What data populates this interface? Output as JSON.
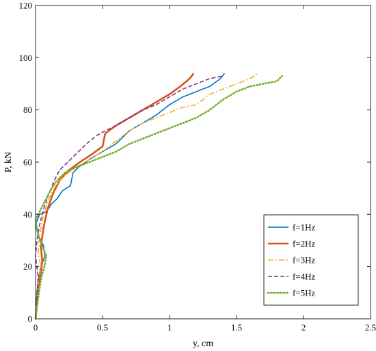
{
  "chart_data": {
    "type": "line",
    "title": "",
    "xlabel": "y, cm",
    "ylabel": "P, kN",
    "xlim": [
      0,
      2.5
    ],
    "ylim": [
      0,
      120
    ],
    "xticks": [
      0,
      0.5,
      1,
      1.5,
      2,
      2.5
    ],
    "xtick_labels": [
      "0",
      "0.5",
      "1",
      "1.5",
      "2",
      "2.5"
    ],
    "yticks": [
      0,
      20,
      40,
      60,
      80,
      100,
      120
    ],
    "ytick_labels": [
      "0",
      "20",
      "40",
      "60",
      "80",
      "100",
      "120"
    ],
    "grid": false,
    "legend_position": "bottom-right",
    "series": [
      {
        "name": "f=1Hz",
        "color": "#0072BD",
        "dash": "solid",
        "x": [
          0,
          0.005,
          0.01,
          0.02,
          0.04,
          0.07,
          0.06,
          0.02,
          0.0,
          0.03,
          0.08,
          0.12,
          0.16,
          0.2,
          0.26,
          0.28,
          0.32,
          0.4,
          0.5,
          0.6,
          0.7,
          0.8,
          0.9,
          1.0,
          1.1,
          1.2,
          1.3,
          1.38,
          1.41
        ],
        "y": [
          0,
          5,
          10,
          15,
          20,
          24,
          28,
          32,
          36,
          40,
          41,
          44,
          46,
          49,
          51,
          56,
          58,
          61,
          64,
          67,
          72,
          75,
          78,
          82,
          85,
          87,
          89,
          92,
          94
        ]
      },
      {
        "name": "f=2Hz",
        "color": "#D95319",
        "dash": "solid",
        "x": [
          0,
          0.01,
          0.02,
          0.04,
          0.05,
          0.04,
          0.06,
          0.09,
          0.13,
          0.18,
          0.25,
          0.33,
          0.42,
          0.5,
          0.52,
          0.6,
          0.7,
          0.8,
          0.9,
          1.0,
          1.08,
          1.15,
          1.18
        ],
        "y": [
          0,
          6,
          12,
          18,
          22,
          28,
          35,
          42,
          48,
          53,
          57,
          60,
          63,
          66,
          71,
          74,
          77,
          80,
          83,
          86,
          89,
          92,
          94
        ]
      },
      {
        "name": "f=3Hz",
        "color": "#EDB120",
        "dash": "dashdot",
        "x": [
          0,
          0.01,
          0.02,
          0.04,
          0.02,
          0.03,
          0.06,
          0.1,
          0.15,
          0.22,
          0.3,
          0.4,
          0.5,
          0.6,
          0.7,
          0.8,
          0.9,
          1.0,
          1.1,
          1.2,
          1.3,
          1.4,
          1.5,
          1.6,
          1.66
        ],
        "y": [
          0,
          7,
          14,
          20,
          25,
          32,
          40,
          46,
          51,
          55,
          58,
          61,
          64,
          68,
          72,
          75,
          77,
          79,
          81,
          82,
          86,
          88,
          90,
          92,
          94
        ]
      },
      {
        "name": "f=4Hz",
        "color": "#7E2F8E",
        "dash": "dashed",
        "x": [
          0,
          0.01,
          0.02,
          0.0,
          0.01,
          0.03,
          0.06,
          0.1,
          0.14,
          0.18,
          0.24,
          0.3,
          0.38,
          0.45,
          0.52,
          0.6,
          0.7,
          0.8,
          0.9,
          1.0,
          1.1,
          1.2,
          1.3,
          1.4
        ],
        "y": [
          0,
          8,
          16,
          24,
          30,
          36,
          42,
          48,
          53,
          57,
          60,
          63,
          67,
          70,
          72,
          74,
          77,
          80,
          82,
          85,
          88,
          90,
          92,
          93
        ]
      },
      {
        "name": "f=5Hz",
        "color": "#77AC30",
        "dash": "dotted",
        "x": [
          0,
          0.02,
          0.04,
          0.07,
          0.08,
          0.05,
          0.02,
          0.0,
          0.04,
          0.08,
          0.12,
          0.16,
          0.22,
          0.3,
          0.4,
          0.5,
          0.6,
          0.7,
          0.8,
          0.9,
          1.0,
          1.1,
          1.2,
          1.3,
          1.4,
          1.5,
          1.6,
          1.7,
          1.8,
          1.84
        ],
        "y": [
          0,
          8,
          15,
          21,
          24,
          28,
          32,
          38,
          42,
          46,
          50,
          53,
          56,
          58,
          60,
          62,
          64,
          67,
          69,
          71,
          73,
          75,
          77,
          80,
          84,
          87,
          89,
          90,
          91,
          93
        ]
      }
    ]
  }
}
